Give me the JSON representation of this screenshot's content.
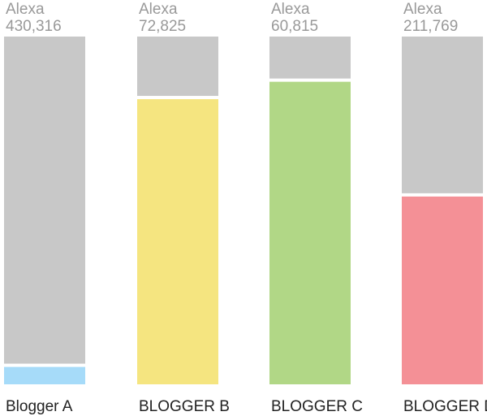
{
  "chart_data": {
    "type": "bar",
    "stacked": true,
    "categories": [
      "Blogger A",
      "BLOGGER B",
      "BLOGGER C",
      "BLOGGER D"
    ],
    "top_labels": [
      [
        "Alexa",
        "430,316"
      ],
      [
        "Alexa",
        "72,825"
      ],
      [
        "Alexa",
        "60,815"
      ],
      [
        "Alexa",
        "211,769"
      ]
    ],
    "fill_fraction": [
      0.05,
      0.82,
      0.87,
      0.54
    ],
    "bar_colors": [
      "#a6dbf9",
      "#f5e580",
      "#b1d786",
      "#f49096"
    ],
    "track_color": "#c8c8c8",
    "grid": false
  }
}
